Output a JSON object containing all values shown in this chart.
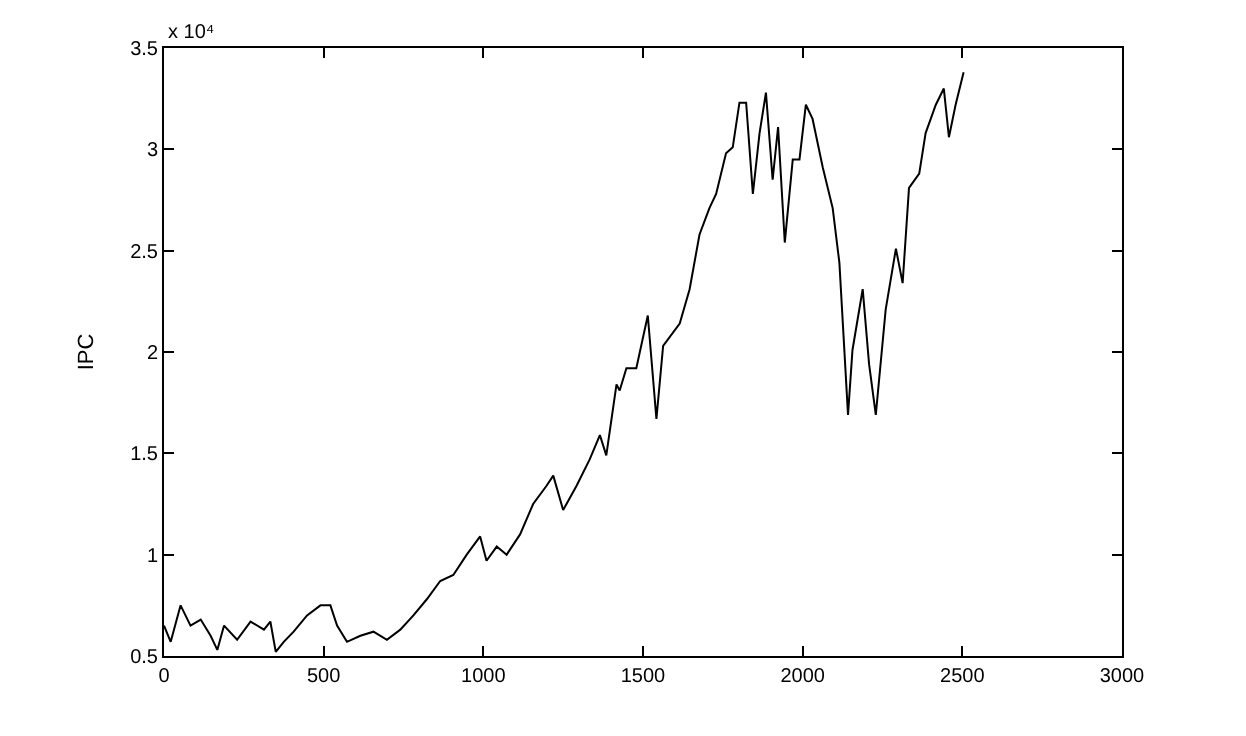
{
  "chart_data": {
    "type": "line",
    "ylabel": "IPC",
    "annotations": [
      "x 10⁴"
    ],
    "xlim": [
      0,
      3000
    ],
    "xticks": [
      0,
      500,
      1000,
      1500,
      2000,
      2500,
      3000
    ],
    "ylim": [
      0.5,
      3.5
    ],
    "yticks": [
      0.5,
      1,
      1.5,
      2,
      2.5,
      3,
      3.5
    ],
    "marker": "none",
    "line_style": "solid",
    "series": [
      {
        "color": "#000000",
        "x": [
          0,
          21,
          52,
          83,
          115,
          146,
          167,
          188,
          229,
          271,
          313,
          333,
          350,
          375,
          406,
          448,
          490,
          521,
          542,
          573,
          615,
          656,
          698,
          740,
          781,
          823,
          865,
          906,
          948,
          990,
          1010,
          1042,
          1073,
          1115,
          1156,
          1198,
          1219,
          1250,
          1292,
          1333,
          1365,
          1385,
          1417,
          1427,
          1448,
          1479,
          1515,
          1542,
          1563,
          1615,
          1646,
          1677,
          1708,
          1729,
          1760,
          1781,
          1802,
          1823,
          1844,
          1865,
          1885,
          1906,
          1923,
          1944,
          1969,
          1990,
          2010,
          2031,
          2063,
          2094,
          2115,
          2142,
          2156,
          2188,
          2208,
          2229,
          2260,
          2292,
          2313,
          2333,
          2365,
          2385,
          2417,
          2442,
          2458,
          2479,
          2504
        ],
        "values": [
          0.65,
          0.57,
          0.75,
          0.65,
          0.68,
          0.6,
          0.53,
          0.65,
          0.58,
          0.67,
          0.63,
          0.67,
          0.52,
          0.57,
          0.62,
          0.7,
          0.75,
          0.75,
          0.65,
          0.57,
          0.6,
          0.62,
          0.58,
          0.63,
          0.7,
          0.78,
          0.87,
          0.9,
          1.0,
          1.09,
          0.97,
          1.04,
          1.0,
          1.1,
          1.25,
          1.34,
          1.39,
          1.22,
          1.34,
          1.47,
          1.59,
          1.49,
          1.84,
          1.81,
          1.92,
          1.92,
          2.18,
          1.67,
          2.03,
          2.14,
          2.31,
          2.58,
          2.71,
          2.78,
          2.98,
          3.01,
          3.23,
          3.23,
          2.78,
          3.08,
          3.28,
          2.85,
          3.11,
          2.54,
          2.95,
          2.95,
          3.22,
          3.15,
          2.91,
          2.71,
          2.44,
          1.69,
          2.01,
          2.31,
          1.94,
          1.69,
          2.21,
          2.51,
          2.34,
          2.81,
          2.88,
          3.08,
          3.22,
          3.3,
          3.06,
          3.22,
          3.38
        ]
      }
    ]
  }
}
